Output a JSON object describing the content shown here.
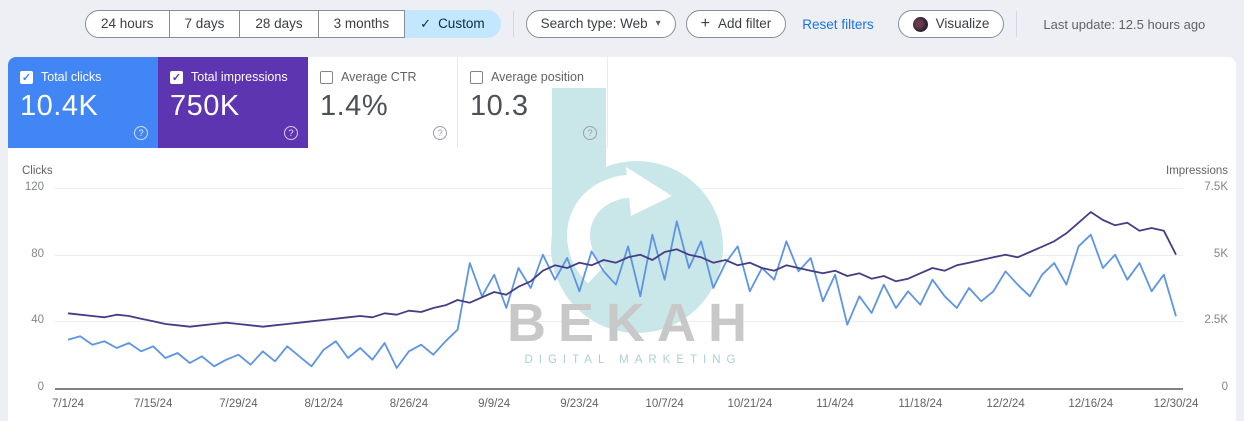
{
  "toolbar": {
    "date_ranges": [
      {
        "label": "24 hours",
        "selected": false
      },
      {
        "label": "7 days",
        "selected": false
      },
      {
        "label": "28 days",
        "selected": false
      },
      {
        "label": "3 months",
        "selected": false
      },
      {
        "label": "Custom",
        "selected": true
      }
    ],
    "custom_check": "✓",
    "search_type": {
      "label": "Search type: Web",
      "caret": "▾"
    },
    "add_filter": {
      "plus": "+",
      "label": "Add filter"
    },
    "reset_filters": "Reset filters",
    "visualize": "Visualize",
    "last_update": "Last update: 12.5 hours ago"
  },
  "cards": [
    {
      "label": "Total clicks",
      "value": "10.4K",
      "selected": true,
      "color": "#4285f4",
      "help": "?"
    },
    {
      "label": "Total impressions",
      "value": "750K",
      "selected": true,
      "color": "#5e35b1",
      "help": "?"
    },
    {
      "label": "Average CTR",
      "value": "1.4%",
      "selected": false,
      "help": "?"
    },
    {
      "label": "Average position",
      "value": "10.3",
      "selected": false,
      "help": "?"
    }
  ],
  "watermark": {
    "title": "BEKAH",
    "subtitle": "DIGITAL MARKETING",
    "teal": "#c9e6e9",
    "gray": "#c8c8c8"
  },
  "chart_data": {
    "type": "line",
    "dual_axis": true,
    "grid": true,
    "left_axis": {
      "label": "Clicks",
      "ticks": [
        "120",
        "80",
        "40",
        "0"
      ],
      "max": 120
    },
    "right_axis": {
      "label": "Impressions",
      "ticks": [
        "7.5K",
        "5K",
        "2.5K",
        "0"
      ],
      "max": 7500
    },
    "x_tick_labels": [
      "7/1/24",
      "7/15/24",
      "7/29/24",
      "8/12/24",
      "8/26/24",
      "9/9/24",
      "9/23/24",
      "10/7/24",
      "10/21/24",
      "11/4/24",
      "11/18/24",
      "12/2/24",
      "12/16/24",
      "12/30/24"
    ],
    "dates": [
      "7/1",
      "7/3",
      "7/5",
      "7/7",
      "7/9",
      "7/11",
      "7/13",
      "7/15",
      "7/17",
      "7/19",
      "7/21",
      "7/23",
      "7/25",
      "7/27",
      "7/29",
      "7/31",
      "8/2",
      "8/4",
      "8/6",
      "8/8",
      "8/10",
      "8/12",
      "8/14",
      "8/16",
      "8/18",
      "8/20",
      "8/22",
      "8/24",
      "8/26",
      "8/28",
      "8/30",
      "9/1",
      "9/3",
      "9/5",
      "9/7",
      "9/9",
      "9/11",
      "9/13",
      "9/15",
      "9/17",
      "9/19",
      "9/21",
      "9/23",
      "9/25",
      "9/27",
      "9/29",
      "10/1",
      "10/3",
      "10/5",
      "10/7",
      "10/9",
      "10/11",
      "10/13",
      "10/15",
      "10/17",
      "10/19",
      "10/21",
      "10/23",
      "10/25",
      "10/27",
      "10/29",
      "10/31",
      "11/2",
      "11/4",
      "11/6",
      "11/8",
      "11/10",
      "11/12",
      "11/14",
      "11/16",
      "11/18",
      "11/20",
      "11/22",
      "11/24",
      "11/26",
      "11/28",
      "11/30",
      "12/2",
      "12/4",
      "12/6",
      "12/8",
      "12/10",
      "12/12",
      "12/14",
      "12/16",
      "12/18",
      "12/20",
      "12/22",
      "12/24",
      "12/26",
      "12/28",
      "12/30"
    ],
    "series": [
      {
        "name": "Clicks",
        "axis": "left",
        "color": "#5d94e4",
        "values": [
          29,
          31,
          26,
          28,
          24,
          27,
          22,
          25,
          18,
          21,
          15,
          19,
          13,
          17,
          20,
          14,
          22,
          16,
          25,
          19,
          13,
          23,
          28,
          18,
          24,
          17,
          27,
          12,
          22,
          26,
          20,
          28,
          35,
          75,
          55,
          68,
          48,
          72,
          60,
          80,
          65,
          78,
          58,
          82,
          70,
          62,
          85,
          55,
          92,
          65,
          100,
          72,
          88,
          60,
          75,
          85,
          58,
          72,
          65,
          88,
          70,
          78,
          52,
          68,
          38,
          55,
          45,
          62,
          48,
          58,
          50,
          65,
          55,
          48,
          60,
          52,
          58,
          70,
          62,
          55,
          68,
          75,
          62,
          85,
          92,
          72,
          80,
          65,
          75,
          58,
          68,
          43
        ]
      },
      {
        "name": "Impressions",
        "axis": "right",
        "color": "#453d85",
        "values": [
          2800,
          2750,
          2700,
          2650,
          2750,
          2700,
          2600,
          2500,
          2400,
          2350,
          2300,
          2350,
          2400,
          2450,
          2400,
          2350,
          2300,
          2350,
          2400,
          2450,
          2500,
          2550,
          2600,
          2650,
          2700,
          2650,
          2800,
          2750,
          2900,
          2850,
          3000,
          3100,
          3300,
          3200,
          3400,
          3600,
          3500,
          3800,
          4000,
          4400,
          4600,
          4500,
          4700,
          4600,
          4800,
          4700,
          4900,
          5000,
          4800,
          5100,
          5200,
          5000,
          4900,
          4700,
          4800,
          4600,
          4700,
          4500,
          4400,
          4600,
          4500,
          4400,
          4300,
          4400,
          4200,
          4300,
          4100,
          4200,
          4000,
          4100,
          4300,
          4500,
          4400,
          4600,
          4700,
          4800,
          4900,
          5000,
          4900,
          5100,
          5300,
          5500,
          5800,
          6200,
          6600,
          6300,
          6100,
          6200,
          5900,
          6000,
          5900,
          5000
        ]
      }
    ]
  }
}
